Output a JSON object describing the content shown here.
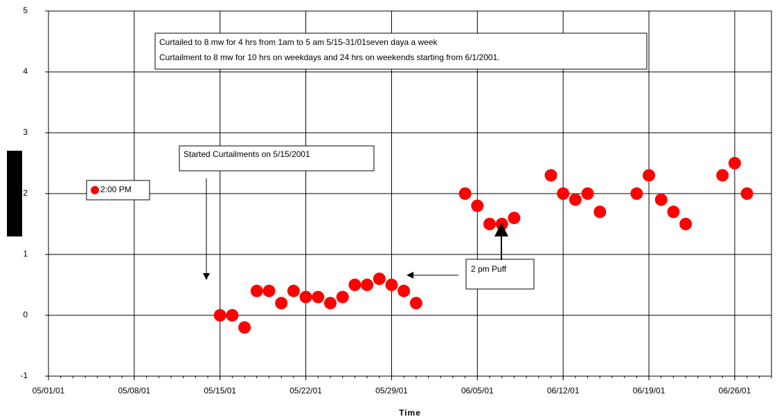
{
  "chart_data": {
    "type": "scatter",
    "x_label": "Time",
    "annotations": [
      "Curtailed to 8 mw for 4 hrs from 1am to 5 am 5/15-31/01seven daya a week",
      "Curtailment to 8 mw for 10 hrs on weekdays and 24 hrs on weekends starting from 6/1/2001.",
      "Started Curtailments on 5/15/2001",
      "2 pm Puff"
    ],
    "xlim": [
      "05/01/01",
      "06/29/01"
    ],
    "xticks": [
      "05/01/01",
      "05/08/01",
      "05/15/01",
      "05/22/01",
      "05/29/01",
      "06/05/01",
      "06/12/01",
      "06/19/01",
      "06/26/01"
    ],
    "ylim": [
      -1,
      5
    ],
    "yticks": [
      -1,
      0,
      1,
      2,
      3,
      4,
      5
    ],
    "grid": true,
    "series": [
      {
        "name": "2:00 PM",
        "color": "#ff0000",
        "x": [
          "05/15/01",
          "05/16/01",
          "05/17/01",
          "05/18/01",
          "05/19/01",
          "05/20/01",
          "05/21/01",
          "05/22/01",
          "05/23/01",
          "05/24/01",
          "05/25/01",
          "05/26/01",
          "05/27/01",
          "05/28/01",
          "05/29/01",
          "05/30/01",
          "05/31/01",
          "06/04/01",
          "06/05/01",
          "06/06/01",
          "06/07/01",
          "06/08/01",
          "06/11/01",
          "06/12/01",
          "06/13/01",
          "06/14/01",
          "06/15/01",
          "06/18/01",
          "06/19/01",
          "06/20/01",
          "06/21/01",
          "06/22/01",
          "06/25/01",
          "06/26/01",
          "06/27/01"
        ],
        "values": [
          0,
          0,
          -0.2,
          0.4,
          0.4,
          0.2,
          0.4,
          0.3,
          0.3,
          0.2,
          0.3,
          0.5,
          0.5,
          0.6,
          0.5,
          0.4,
          0.2,
          2.0,
          1.8,
          1.5,
          1.5,
          1.6,
          2.3,
          2.0,
          1.9,
          2.0,
          1.7,
          2.0,
          2.3,
          1.9,
          1.7,
          1.5,
          2.3,
          2.5,
          2.0
        ]
      }
    ]
  }
}
